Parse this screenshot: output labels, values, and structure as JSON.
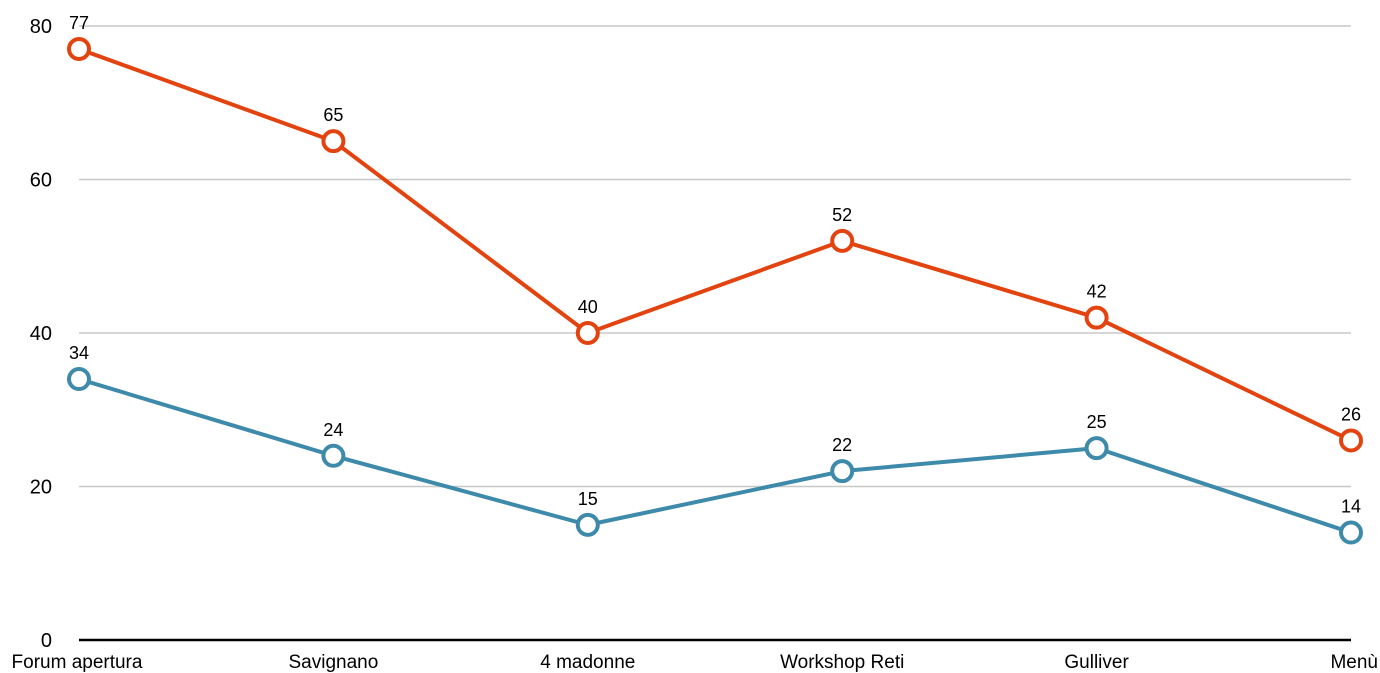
{
  "chart_data": {
    "type": "line",
    "categories": [
      "Forum apertura",
      "Savignano",
      "4 madonne",
      "Workshop Reti",
      "Gulliver",
      "Menù"
    ],
    "series": [
      {
        "values": [
          77,
          65,
          40,
          52,
          42,
          26
        ],
        "color": "#e2430f"
      },
      {
        "values": [
          34,
          24,
          15,
          22,
          25,
          14
        ],
        "color": "#3e8aab"
      }
    ],
    "ylim": [
      0,
      80
    ],
    "yticks": [
      "0",
      "20",
      "40",
      "60",
      "80"
    ],
    "grid": true,
    "title": "",
    "xlabel": "",
    "ylabel": ""
  }
}
